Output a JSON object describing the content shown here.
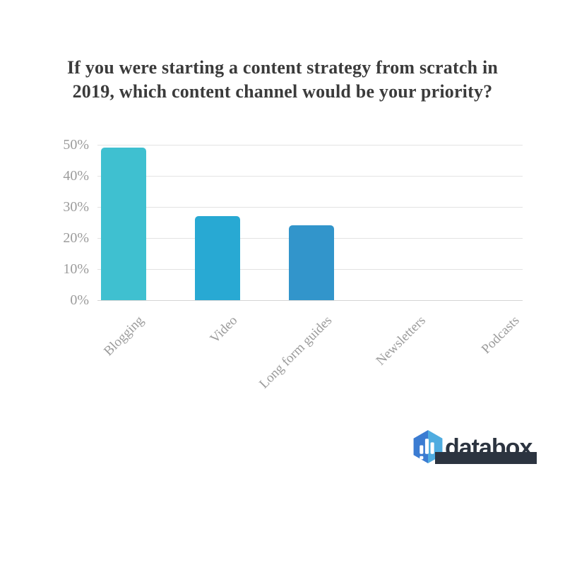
{
  "title_lines": [
    "If you were starting a content strategy from scratch in",
    "2019, which content channel would be your priority?"
  ],
  "chart_data": {
    "type": "bar",
    "title": "If you were starting a content strategy from scratch in 2019, which content channel would be your priority?",
    "categories": [
      "Blogging",
      "Video",
      "Long form guides",
      "Newsletters",
      "Podcasts"
    ],
    "values": [
      49,
      27,
      24,
      0,
      0
    ],
    "value_unit": "%",
    "xlabel": "",
    "ylabel": "",
    "ylim": [
      0,
      50
    ],
    "ytick_labels": [
      "0%",
      "10%",
      "20%",
      "30%",
      "40%",
      "50%"
    ],
    "bar_colors": [
      "#3FC0D0",
      "#28A9D3",
      "#3295CB"
    ],
    "grid": true,
    "legend": false,
    "x_labels_rotation_deg": -45
  },
  "branding": {
    "logo_text": "databox",
    "logo_icon": "hexagon-bar-chart-icon",
    "navy": "#2C3440",
    "hex_dark_blue": "#3B7CD2",
    "hex_light_blue": "#4FACE0"
  },
  "theme": {
    "background": "#FFFFFF",
    "title_color": "#3B3B3B",
    "axis_text_color": "#9B9B9B",
    "grid_color": "#E3E3E3",
    "baseline_color": "#D5D5D5"
  }
}
